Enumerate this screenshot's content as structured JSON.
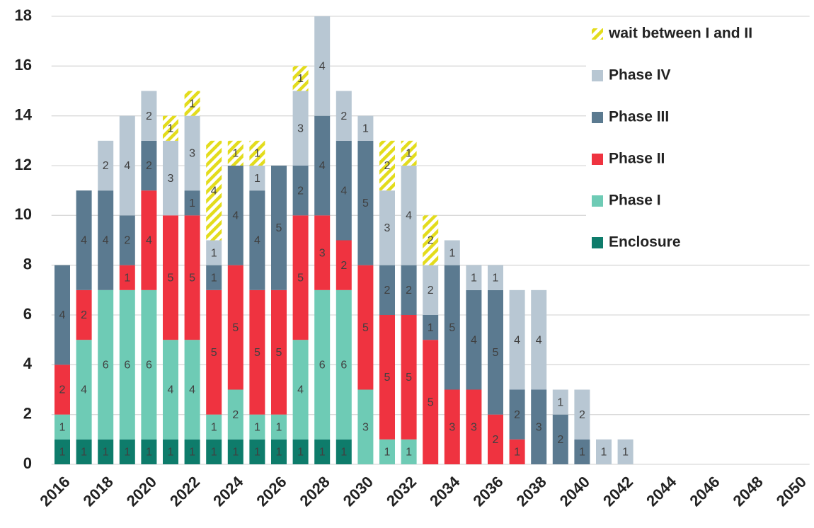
{
  "chart_data": {
    "type": "stacked_bar",
    "categories": [
      "2016",
      null,
      "2018",
      null,
      "2020",
      null,
      "2022",
      null,
      "2024",
      null,
      "2026",
      null,
      "2028",
      null,
      "2030",
      null,
      "2032",
      null,
      "2034",
      null,
      "2036",
      null,
      "2038",
      null,
      "2040",
      null,
      "2042",
      null,
      "2044",
      null,
      "2046",
      null,
      "2048",
      null,
      "2050"
    ],
    "series": [
      {
        "name": "Enclosure",
        "color": "#0e7c6b",
        "values": [
          1,
          1,
          1,
          1,
          1,
          1,
          1,
          1,
          1,
          1,
          1,
          1,
          1,
          1,
          0,
          0,
          0,
          0,
          0,
          0,
          0,
          0,
          0,
          0,
          0,
          0,
          0,
          0,
          0,
          0,
          0,
          0,
          0,
          0,
          0
        ]
      },
      {
        "name": "Phase I",
        "color": "#6ecbb5",
        "values": [
          1,
          4,
          6,
          6,
          6,
          4,
          4,
          1,
          2,
          1,
          1,
          4,
          6,
          6,
          3,
          1,
          1,
          0,
          0,
          0,
          0,
          0,
          0,
          0,
          0,
          0,
          0,
          0,
          0,
          0,
          0,
          0,
          0,
          0,
          0
        ]
      },
      {
        "name": "Phase II",
        "color": "#ef3340",
        "values": [
          2,
          2,
          0,
          1,
          4,
          5,
          5,
          5,
          5,
          5,
          5,
          5,
          3,
          2,
          5,
          5,
          5,
          5,
          3,
          3,
          2,
          1,
          0,
          0,
          0,
          0,
          0,
          0,
          0,
          0,
          0,
          0,
          0,
          0,
          0
        ]
      },
      {
        "name": "Phase III",
        "color": "#5b7a90",
        "values": [
          4,
          4,
          4,
          2,
          2,
          0,
          1,
          1,
          4,
          4,
          5,
          2,
          4,
          4,
          5,
          2,
          2,
          1,
          5,
          4,
          5,
          2,
          3,
          2,
          1,
          0,
          0,
          0,
          0,
          0,
          0,
          0,
          0,
          0,
          0
        ]
      },
      {
        "name": "Phase IV",
        "color": "#b8c7d3",
        "values": [
          0,
          0,
          2,
          4,
          2,
          3,
          3,
          1,
          0,
          1,
          0,
          3,
          4,
          2,
          1,
          3,
          4,
          2,
          1,
          1,
          1,
          4,
          4,
          1,
          2,
          1,
          1,
          0,
          0,
          0,
          0,
          0,
          0,
          0,
          0
        ]
      },
      {
        "name": "wait between I and II",
        "color": "#e3dc1c",
        "hatch": true,
        "values": [
          0,
          0,
          0,
          0,
          0,
          1,
          1,
          4,
          1,
          1,
          0,
          1,
          0,
          0,
          0,
          2,
          1,
          2,
          0,
          0,
          0,
          0,
          0,
          0,
          0,
          0,
          0,
          0,
          0,
          0,
          0,
          0,
          0,
          0,
          0
        ]
      }
    ],
    "ylim": [
      0,
      18
    ],
    "yticks": [
      0,
      2,
      4,
      6,
      8,
      10,
      12,
      14,
      16,
      18
    ],
    "grid": true,
    "legend": "top-right"
  }
}
